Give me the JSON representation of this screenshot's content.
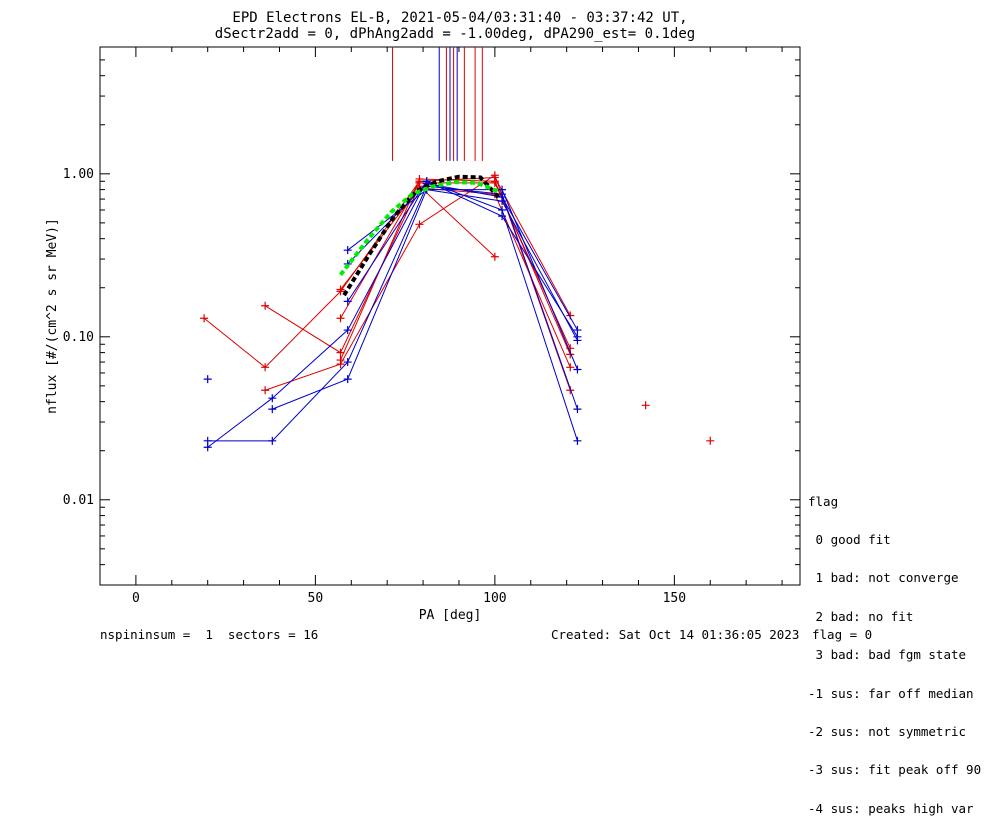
{
  "title_line1": "EPD Electrons EL-B, 2021-05-04/03:31:40 - 03:37:42 UT,",
  "title_line2": "dSectr2add = 0, dPhAng2add = -1.00deg, dPA290_est=   0.1deg",
  "legend": {
    "title": "flag",
    "items": [
      " 0 good fit",
      " 1 bad: not converge",
      " 2 bad: no fit",
      " 3 bad: bad fgm state",
      "-1 sus: far off median",
      "-2 sus: not symmetric",
      "-3 sus: fit peak off 90",
      "-4 sus: peaks high var"
    ]
  },
  "footer": {
    "left": "nspininsum =  1  sectors = 16",
    "created": "Created: Sat Oct 14 01:36:05 2023",
    "flag": "flag = 0"
  },
  "colors": {
    "red": "#dd0000",
    "blue": "#0000cc",
    "green": "#00ee00",
    "black": "#000000"
  },
  "chart_data": {
    "type": "scatter",
    "xlabel": "PA [deg]",
    "ylabel": "nflux [#/(cm^2 s sr MeV)]",
    "xlim": [
      -10,
      185
    ],
    "ylim": [
      0.003,
      6.0
    ],
    "yscale": "log",
    "x_ticks": [
      0,
      50,
      100,
      150
    ],
    "x_tick_labels": [
      "0",
      "50",
      "100",
      "150"
    ],
    "y_ticks": [
      0.01,
      0.1,
      1.0
    ],
    "y_tick_labels": [
      "0.01",
      "0.10",
      "1.00"
    ],
    "series": [
      {
        "color": "red",
        "points": [
          [
            19,
            0.13
          ],
          [
            36,
            0.065
          ],
          [
            57,
            0.19
          ],
          [
            79,
            0.9
          ],
          [
            100,
            0.95
          ],
          [
            121,
            0.135
          ]
        ]
      },
      {
        "color": "red",
        "points": [
          [
            36,
            0.155
          ],
          [
            57,
            0.08
          ],
          [
            79,
            0.84
          ],
          [
            100,
            0.31
          ]
        ]
      },
      {
        "color": "red",
        "points": [
          [
            36,
            0.047
          ],
          [
            57,
            0.068
          ],
          [
            79,
            0.49
          ],
          [
            100,
            0.98
          ],
          [
            121,
            0.047
          ]
        ]
      },
      {
        "color": "red",
        "points": [
          [
            57,
            0.13
          ],
          [
            79,
            0.88
          ],
          [
            100,
            0.88
          ],
          [
            121,
            0.085
          ]
        ]
      },
      {
        "color": "red",
        "points": [
          [
            57,
            0.072
          ],
          [
            79,
            0.93
          ],
          [
            100,
            0.9
          ],
          [
            121,
            0.078
          ]
        ]
      },
      {
        "color": "red",
        "points": [
          [
            57,
            0.195
          ],
          [
            79,
            0.82
          ],
          [
            100,
            0.75
          ],
          [
            121,
            0.065
          ]
        ]
      },
      {
        "color": "blue",
        "points": [
          [
            20,
            0.021
          ],
          [
            38,
            0.042
          ],
          [
            59,
            0.11
          ],
          [
            81,
            0.9
          ],
          [
            102,
            0.6
          ],
          [
            123,
            0.023
          ]
        ]
      },
      {
        "color": "blue",
        "points": [
          [
            20,
            0.023
          ],
          [
            38,
            0.023
          ],
          [
            59,
            0.07
          ],
          [
            81,
            0.84
          ],
          [
            102,
            0.75
          ],
          [
            123,
            0.036
          ]
        ]
      },
      {
        "color": "blue",
        "points": [
          [
            38,
            0.036
          ],
          [
            59,
            0.055
          ],
          [
            81,
            0.8
          ],
          [
            102,
            0.8
          ],
          [
            123,
            0.063
          ]
        ]
      },
      {
        "color": "blue",
        "points": [
          [
            59,
            0.34
          ],
          [
            81,
            0.8
          ],
          [
            102,
            0.68
          ],
          [
            123,
            0.095
          ]
        ]
      },
      {
        "color": "blue",
        "points": [
          [
            59,
            0.28
          ],
          [
            81,
            0.87
          ],
          [
            102,
            0.72
          ],
          [
            123,
            0.11
          ]
        ]
      },
      {
        "color": "blue",
        "points": [
          [
            59,
            0.165
          ],
          [
            81,
            0.9
          ],
          [
            102,
            0.55
          ],
          [
            123,
            0.1
          ]
        ]
      }
    ],
    "isolated_points": [
      {
        "color": "blue",
        "x": 20,
        "y": 0.055
      },
      {
        "color": "red",
        "x": 142,
        "y": 0.038
      },
      {
        "color": "red",
        "x": 160,
        "y": 0.023
      }
    ],
    "fit_curves": [
      {
        "color": "black",
        "style": "dashed",
        "points": [
          [
            58,
            0.18
          ],
          [
            65,
            0.32
          ],
          [
            72,
            0.55
          ],
          [
            78,
            0.78
          ],
          [
            84,
            0.9
          ],
          [
            90,
            0.96
          ],
          [
            96,
            0.95
          ],
          [
            101,
            0.72
          ]
        ]
      },
      {
        "color": "green",
        "style": "dashed",
        "points": [
          [
            57,
            0.24
          ],
          [
            64,
            0.38
          ],
          [
            71,
            0.58
          ],
          [
            77,
            0.75
          ],
          [
            83,
            0.84
          ],
          [
            89,
            0.89
          ],
          [
            95,
            0.88
          ],
          [
            101,
            0.78
          ]
        ]
      }
    ],
    "peak_lines": [
      {
        "color": "red",
        "x": 71.5,
        "ymin": 1.2
      },
      {
        "color": "blue",
        "x": 84.5,
        "ymin": 1.2
      },
      {
        "color": "red",
        "x": 86.5,
        "ymin": 1.2
      },
      {
        "color": "blue",
        "x": 87.5,
        "ymin": 1.2
      },
      {
        "color": "red",
        "x": 88.5,
        "ymin": 1.2
      },
      {
        "color": "blue",
        "x": 89.5,
        "ymin": 1.2
      },
      {
        "color": "red",
        "x": 91.5,
        "ymin": 1.2
      },
      {
        "color": "red",
        "x": 94.5,
        "ymin": 1.2
      },
      {
        "color": "red",
        "x": 96.5,
        "ymin": 1.2
      }
    ]
  }
}
